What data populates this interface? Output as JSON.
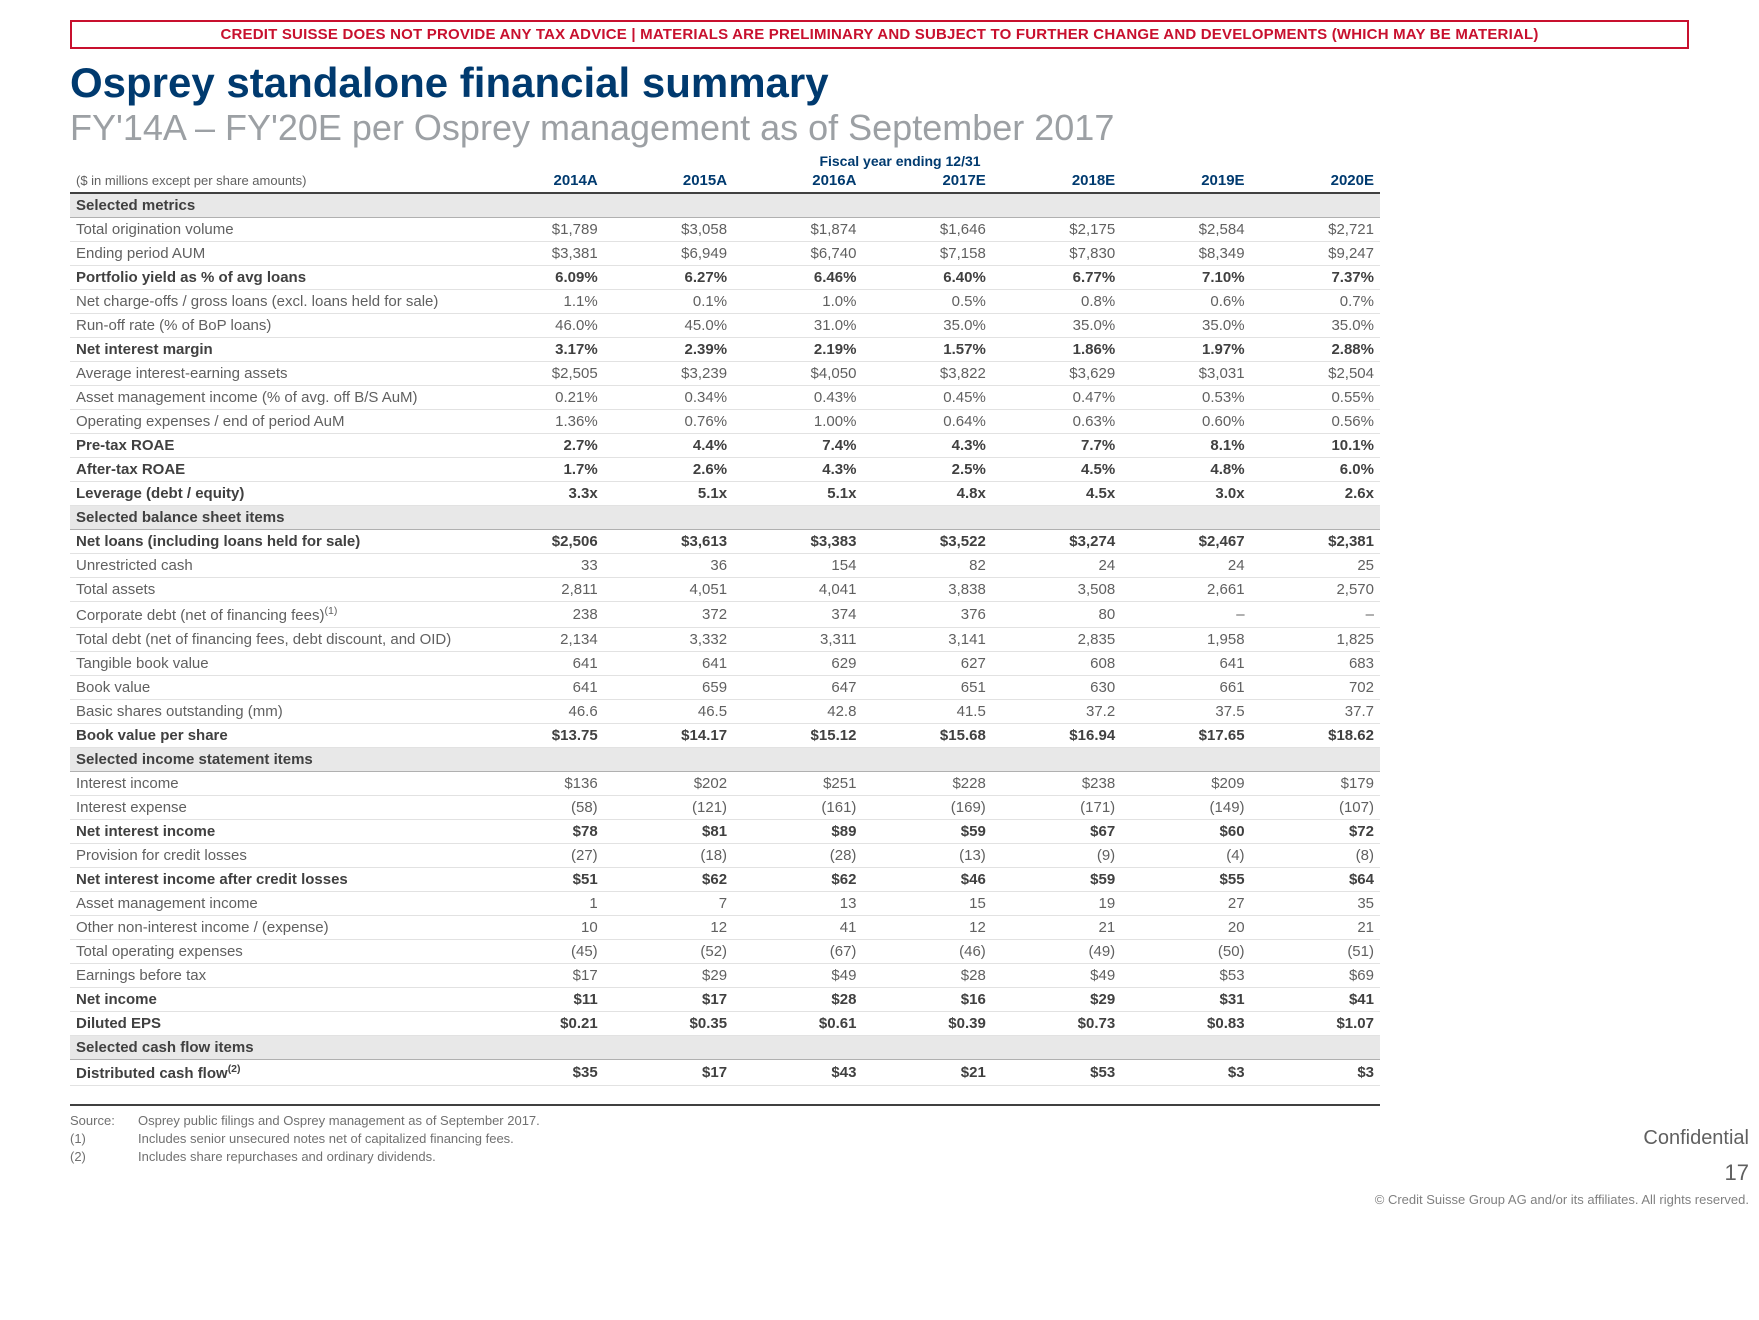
{
  "disclaimer": "CREDIT SUISSE DOES NOT PROVIDE ANY TAX ADVICE | MATERIALS ARE PRELIMINARY AND SUBJECT TO FURTHER CHANGE AND DEVELOPMENTS (WHICH MAY BE MATERIAL)",
  "title": "Osprey standalone financial summary",
  "subtitle": "FY'14A – FY'20E per Osprey management as of September 2017",
  "fiscal_label": "Fiscal year ending 12/31",
  "row_header_note": "($ in millions except per share amounts)",
  "years": [
    "2014A",
    "2015A",
    "2016A",
    "2017E",
    "2018E",
    "2019E",
    "2020E"
  ],
  "sections": [
    {
      "type": "section",
      "label": "Selected metrics"
    },
    {
      "label": "Total origination volume",
      "vals": [
        "$1,789",
        "$3,058",
        "$1,874",
        "$1,646",
        "$2,175",
        "$2,584",
        "$2,721"
      ]
    },
    {
      "label": "Ending period AUM",
      "vals": [
        "$3,381",
        "$6,949",
        "$6,740",
        "$7,158",
        "$7,830",
        "$8,349",
        "$9,247"
      ]
    },
    {
      "label": "Portfolio yield as % of avg loans",
      "bold": true,
      "vals": [
        "6.09%",
        "6.27%",
        "6.46%",
        "6.40%",
        "6.77%",
        "7.10%",
        "7.37%"
      ]
    },
    {
      "label": "Net charge-offs / gross loans (excl. loans held for sale)",
      "vals": [
        "1.1%",
        "0.1%",
        "1.0%",
        "0.5%",
        "0.8%",
        "0.6%",
        "0.7%"
      ]
    },
    {
      "label": "Run-off rate (% of BoP loans)",
      "vals": [
        "46.0%",
        "45.0%",
        "31.0%",
        "35.0%",
        "35.0%",
        "35.0%",
        "35.0%"
      ]
    },
    {
      "label": "Net interest margin",
      "bold": true,
      "vals": [
        "3.17%",
        "2.39%",
        "2.19%",
        "1.57%",
        "1.86%",
        "1.97%",
        "2.88%"
      ]
    },
    {
      "label": "Average interest-earning assets",
      "vals": [
        "$2,505",
        "$3,239",
        "$4,050",
        "$3,822",
        "$3,629",
        "$3,031",
        "$2,504"
      ]
    },
    {
      "label": "Asset management income (% of avg. off B/S AuM)",
      "vals": [
        "0.21%",
        "0.34%",
        "0.43%",
        "0.45%",
        "0.47%",
        "0.53%",
        "0.55%"
      ]
    },
    {
      "label": "Operating expenses / end of period AuM",
      "vals": [
        "1.36%",
        "0.76%",
        "1.00%",
        "0.64%",
        "0.63%",
        "0.60%",
        "0.56%"
      ]
    },
    {
      "label": "Pre-tax ROAE",
      "bold": true,
      "vals": [
        "2.7%",
        "4.4%",
        "7.4%",
        "4.3%",
        "7.7%",
        "8.1%",
        "10.1%"
      ]
    },
    {
      "label": "After-tax ROAE",
      "bold": true,
      "vals": [
        "1.7%",
        "2.6%",
        "4.3%",
        "2.5%",
        "4.5%",
        "4.8%",
        "6.0%"
      ]
    },
    {
      "label": "Leverage (debt / equity)",
      "bold": true,
      "vals": [
        "3.3x",
        "5.1x",
        "5.1x",
        "4.8x",
        "4.5x",
        "3.0x",
        "2.6x"
      ]
    },
    {
      "type": "section",
      "label": "Selected balance sheet items"
    },
    {
      "label": "Net loans (including loans held for sale)",
      "bold": true,
      "vals": [
        "$2,506",
        "$3,613",
        "$3,383",
        "$3,522",
        "$3,274",
        "$2,467",
        "$2,381"
      ]
    },
    {
      "label": "Unrestricted cash",
      "vals": [
        "33",
        "36",
        "154",
        "82",
        "24",
        "24",
        "25"
      ]
    },
    {
      "label": "Total assets",
      "vals": [
        "2,811",
        "4,051",
        "4,041",
        "3,838",
        "3,508",
        "2,661",
        "2,570"
      ]
    },
    {
      "label": "Corporate debt (net of financing fees)",
      "sup": "(1)",
      "vals": [
        "238",
        "372",
        "374",
        "376",
        "80",
        "–",
        "–"
      ]
    },
    {
      "label": "Total debt (net of financing fees, debt discount, and OID)",
      "vals": [
        "2,134",
        "3,332",
        "3,311",
        "3,141",
        "2,835",
        "1,958",
        "1,825"
      ]
    },
    {
      "label": "Tangible book value",
      "vals": [
        "641",
        "641",
        "629",
        "627",
        "608",
        "641",
        "683"
      ]
    },
    {
      "label": "Book value",
      "vals": [
        "641",
        "659",
        "647",
        "651",
        "630",
        "661",
        "702"
      ]
    },
    {
      "label": "Basic shares outstanding (mm)",
      "vals": [
        "46.6",
        "46.5",
        "42.8",
        "41.5",
        "37.2",
        "37.5",
        "37.7"
      ]
    },
    {
      "label": "Book value per share",
      "bold": true,
      "vals": [
        "$13.75",
        "$14.17",
        "$15.12",
        "$15.68",
        "$16.94",
        "$17.65",
        "$18.62"
      ]
    },
    {
      "type": "section",
      "label": "Selected income statement items"
    },
    {
      "label": "Interest income",
      "vals": [
        "$136",
        "$202",
        "$251",
        "$228",
        "$238",
        "$209",
        "$179"
      ]
    },
    {
      "label": "Interest expense",
      "vals": [
        "(58)",
        "(121)",
        "(161)",
        "(169)",
        "(171)",
        "(149)",
        "(107)"
      ]
    },
    {
      "label": "Net interest income",
      "bold": true,
      "vals": [
        "$78",
        "$81",
        "$89",
        "$59",
        "$67",
        "$60",
        "$72"
      ]
    },
    {
      "label": "Provision for credit losses",
      "vals": [
        "(27)",
        "(18)",
        "(28)",
        "(13)",
        "(9)",
        "(4)",
        "(8)"
      ]
    },
    {
      "label": "Net interest income after credit losses",
      "bold": true,
      "vals": [
        "$51",
        "$62",
        "$62",
        "$46",
        "$59",
        "$55",
        "$64"
      ]
    },
    {
      "label": "Asset management income",
      "vals": [
        "1",
        "7",
        "13",
        "15",
        "19",
        "27",
        "35"
      ]
    },
    {
      "label": "Other non-interest income / (expense)",
      "vals": [
        "10",
        "12",
        "41",
        "12",
        "21",
        "20",
        "21"
      ]
    },
    {
      "label": "Total operating expenses",
      "vals": [
        "(45)",
        "(52)",
        "(67)",
        "(46)",
        "(49)",
        "(50)",
        "(51)"
      ]
    },
    {
      "label": "Earnings before tax",
      "vals": [
        "$17",
        "$29",
        "$49",
        "$28",
        "$49",
        "$53",
        "$69"
      ]
    },
    {
      "label": "Net income",
      "bold": true,
      "vals": [
        "$11",
        "$17",
        "$28",
        "$16",
        "$29",
        "$31",
        "$41"
      ]
    },
    {
      "label": "Diluted EPS",
      "bold": true,
      "vals": [
        "$0.21",
        "$0.35",
        "$0.61",
        "$0.39",
        "$0.73",
        "$0.83",
        "$1.07"
      ]
    },
    {
      "type": "section",
      "label": "Selected cash flow items"
    },
    {
      "label": "Distributed cash flow",
      "sup": "(2)",
      "bold": true,
      "vals": [
        "$35",
        "$17",
        "$43",
        "$21",
        "$53",
        "$3",
        "$3"
      ]
    }
  ],
  "footnotes": {
    "source_label": "Source:",
    "source": "Osprey public filings and Osprey management as of September 2017.",
    "n1_label": "(1)",
    "n1": "Includes senior unsecured notes net of capitalized financing fees.",
    "n2_label": "(2)",
    "n2": "Includes share repurchases and ordinary dividends."
  },
  "footer": {
    "confidential": "Confidential",
    "page": "17",
    "copyright": "© Credit Suisse Group AG and/or its affiliates. All rights reserved."
  },
  "colors": {
    "brand_red": "#c8102e",
    "brand_navy": "#003a6f",
    "muted_grey": "#9ca0a4",
    "text": "#606060"
  }
}
